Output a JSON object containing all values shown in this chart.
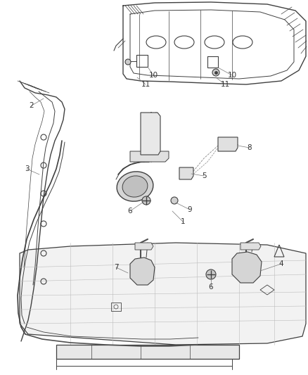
{
  "bg_color": "#ffffff",
  "line_color": "#404040",
  "label_color": "#333333",
  "figsize": [
    4.38,
    5.33
  ],
  "dpi": 100,
  "lw": 0.8
}
